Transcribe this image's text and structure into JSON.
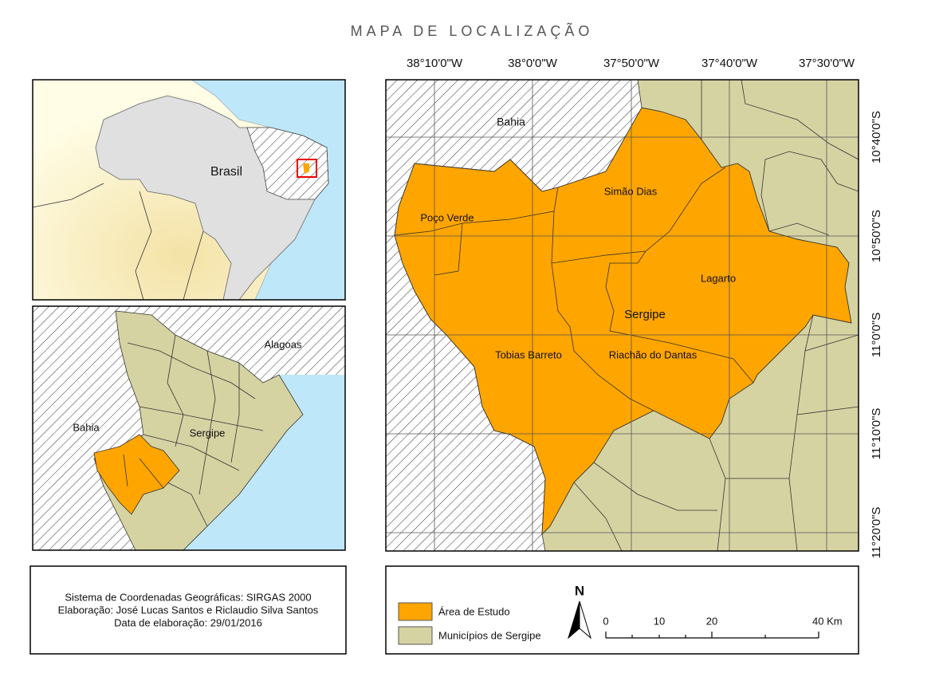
{
  "title": "MAPA DE LOCALIZAÇÃO",
  "main_map": {
    "longitude_labels": [
      "38°10'0\"W",
      "38°0'0\"W",
      "37°50'0\"W",
      "37°40'0\"W",
      "37°30'0\"W"
    ],
    "latitude_labels": [
      "10°40'0\"S",
      "10°50'0\"S",
      "11°0'0\"S",
      "11°10'0\"S",
      "11°20'0\"S"
    ],
    "labels": [
      "Bahia",
      "Simão Dias",
      "Poço Verde",
      "Lagarto",
      "Sergipe",
      "Tobias Barreto",
      "Riachão do Dantas"
    ]
  },
  "inset_brazil": {
    "label": "Brasil"
  },
  "inset_region": {
    "labels": [
      "Alagoas",
      "Bahia",
      "Sergipe"
    ]
  },
  "info": {
    "lines": [
      "Sistema de Coordenadas Geográficas: SIRGAS 2000",
      "Elaboração: José Lucas Santos e Riclaudio Silva Santos",
      "Data de elaboração: 29/01/2016"
    ]
  },
  "legend": {
    "items": [
      "Área de Estudo",
      "Municípios de Sergipe"
    ]
  },
  "north_arrow": "N",
  "scale_bar": {
    "labels": [
      "0",
      "10",
      "20",
      "40 Km"
    ]
  }
}
